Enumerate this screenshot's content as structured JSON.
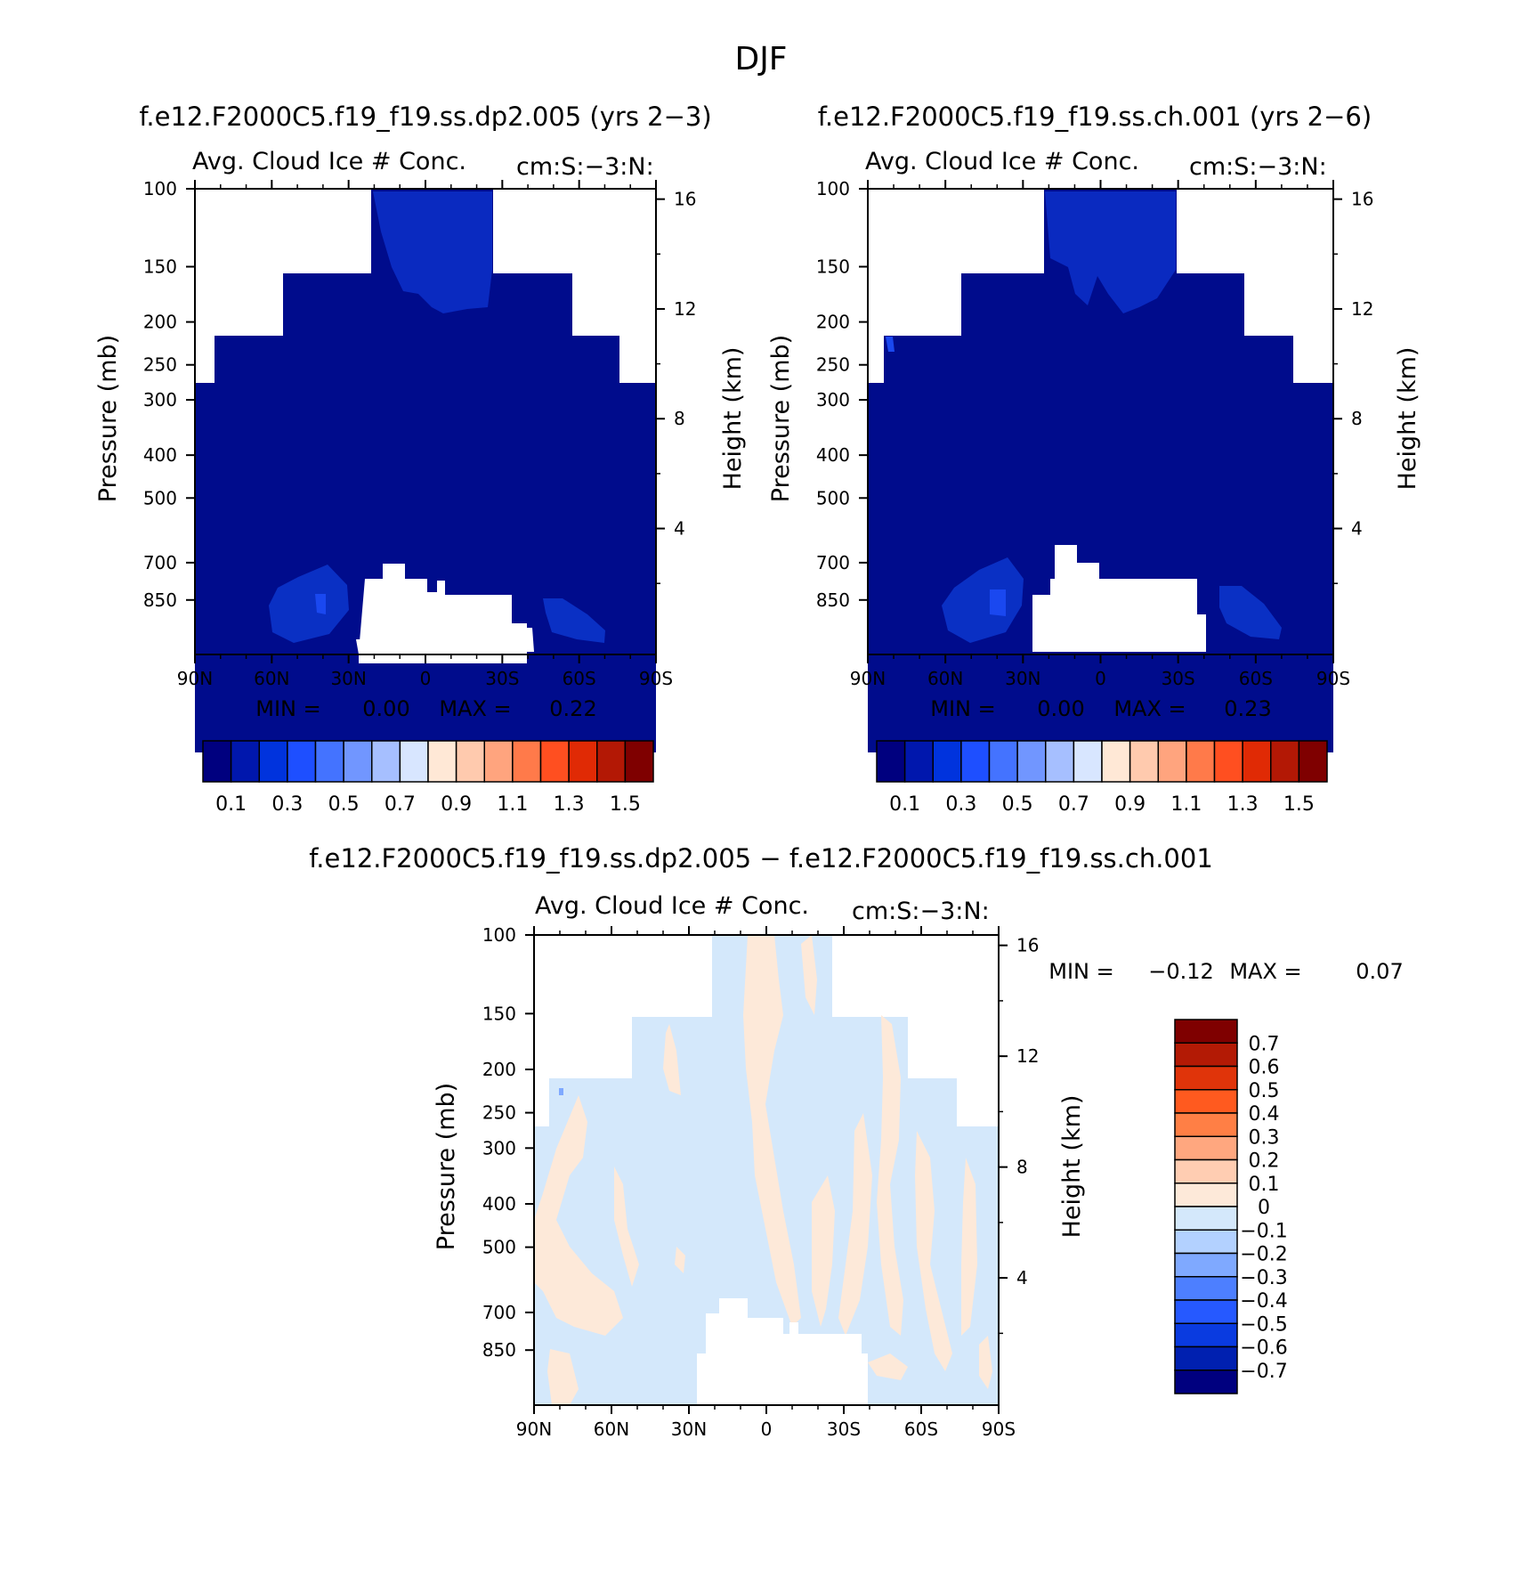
{
  "figure": {
    "title": "DJF",
    "subtitle_left": "f.e12.F2000C5.f19_f19.ss.dp2.005 (yrs 2-3)",
    "subtitle_right": "f.e12.F2000C5.f19_f19.ss.ch.001 (yrs 2-6)",
    "subtitle_diff": "f.e12.F2000C5.f19_f19.ss.dp2.005 - f.e12.F2000C5.f19_f19.ss.ch.001"
  },
  "colors": {
    "deep_blue": "#000c8c",
    "mid_blue": "#0020c0",
    "bright_blue": "#0a3be0",
    "diff_blue": "#d4e8fb",
    "diff_peach": "#fde9d9"
  },
  "chart_data": [
    {
      "type": "contour",
      "panel": "left",
      "title": "Avg. Cloud Ice # Conc.",
      "units": "cm:S:-3:N:",
      "ylabel": "Pressure (mb)",
      "ylabel_right": "Height (km)",
      "x_ticks": [
        "90N",
        "60N",
        "30N",
        "0",
        "30S",
        "60S",
        "90S"
      ],
      "x_range": [
        90,
        -90
      ],
      "y_ticks": [
        "100",
        "150",
        "200",
        "250",
        "300",
        "400",
        "500",
        "700",
        "850"
      ],
      "y_range": [
        100,
        1000
      ],
      "right_ticks": [
        "16",
        "12",
        "8",
        "4"
      ],
      "min_label": "MIN =",
      "min": "0.00",
      "max_label": "MAX =",
      "max": "0.22",
      "colorbar_labels": [
        "0.1",
        "0.3",
        "0.5",
        "0.7",
        "0.9",
        "1.1",
        "1.3",
        "1.5"
      ]
    },
    {
      "type": "contour",
      "panel": "right",
      "title": "Avg. Cloud Ice # Conc.",
      "units": "cm:S:-3:N:",
      "ylabel": "Pressure (mb)",
      "ylabel_right": "Height (km)",
      "x_ticks": [
        "90N",
        "60N",
        "30N",
        "0",
        "30S",
        "60S",
        "90S"
      ],
      "x_range": [
        90,
        -90
      ],
      "y_ticks": [
        "100",
        "150",
        "200",
        "250",
        "300",
        "400",
        "500",
        "700",
        "850"
      ],
      "y_range": [
        100,
        1000
      ],
      "right_ticks": [
        "16",
        "12",
        "8",
        "4"
      ],
      "min_label": "MIN =",
      "min": "0.00",
      "max_label": "MAX =",
      "max": "0.23",
      "colorbar_labels": [
        "0.1",
        "0.3",
        "0.5",
        "0.7",
        "0.9",
        "1.1",
        "1.3",
        "1.5"
      ]
    },
    {
      "type": "contour",
      "panel": "difference",
      "title": "Avg. Cloud Ice # Conc.",
      "units": "cm:S:-3:N:",
      "ylabel": "Pressure (mb)",
      "ylabel_right": "Height (km)",
      "x_ticks": [
        "90N",
        "60N",
        "30N",
        "0",
        "30S",
        "60S",
        "90S"
      ],
      "x_range": [
        90,
        -90
      ],
      "y_ticks": [
        "100",
        "150",
        "200",
        "250",
        "300",
        "400",
        "500",
        "700",
        "850"
      ],
      "y_range": [
        100,
        1000
      ],
      "right_ticks": [
        "16",
        "12",
        "8",
        "4"
      ],
      "min_label": "MIN =",
      "min": "-0.12",
      "max_label": "MAX =",
      "max": "0.07",
      "colorbar_labels": [
        "0.7",
        "0.6",
        "0.5",
        "0.4",
        "0.3",
        "0.2",
        "0.1",
        "0",
        "-0.1",
        "-0.2",
        "-0.3",
        "-0.4",
        "-0.5",
        "-0.6",
        "-0.7"
      ]
    }
  ],
  "colorbar_main": [
    "#00007f",
    "#0017ad",
    "#0033dd",
    "#1e4fff",
    "#4473ff",
    "#7196ff",
    "#a6bfff",
    "#d8e6ff",
    "#ffe8d6",
    "#ffcaae",
    "#ffa47e",
    "#ff7a4a",
    "#ff4f20",
    "#e02a05",
    "#b31805",
    "#7f0000"
  ],
  "colorbar_diff": [
    "#7f0000",
    "#b31a05",
    "#e0340a",
    "#ff5a1f",
    "#ff7f45",
    "#ffa77f",
    "#ffcdb2",
    "#fde9d9",
    "#d4e8fb",
    "#b3d1ff",
    "#7fa9ff",
    "#4d7fff",
    "#2659ff",
    "#0a3be0",
    "#0020b0",
    "#00007f"
  ]
}
